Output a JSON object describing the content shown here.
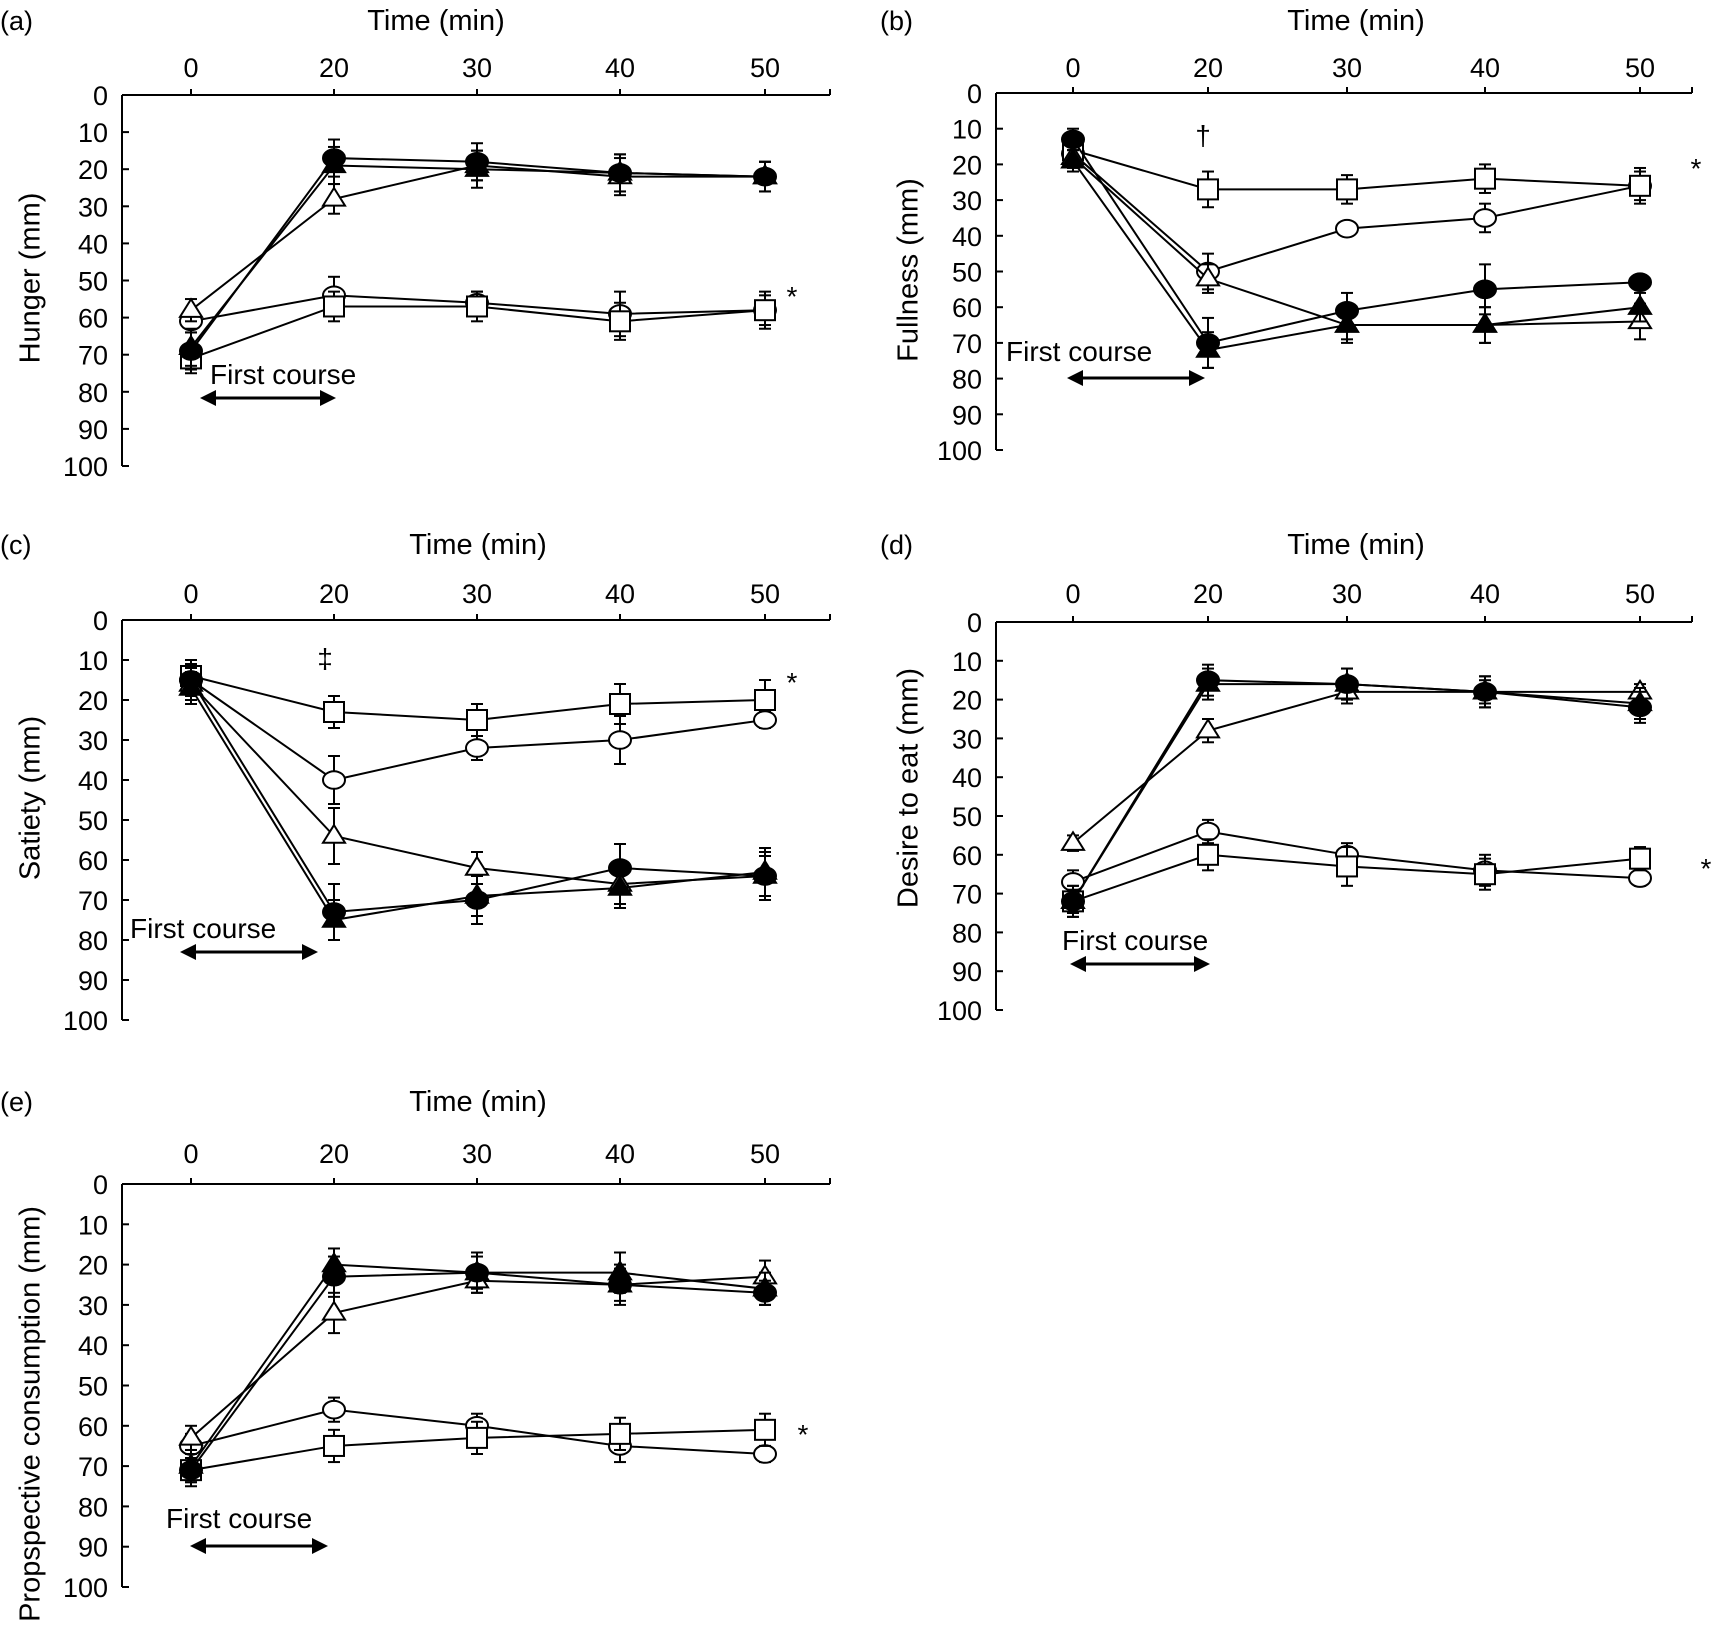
{
  "chart_data": [
    {
      "panel": "(a)",
      "type": "line",
      "xlabel": "Time (min)",
      "ylabel": "Hunger (mm)",
      "x": [
        0,
        20,
        30,
        40,
        50
      ],
      "ylim": [
        0,
        100
      ],
      "yticks": [
        "0",
        "10",
        "20",
        "30",
        "40",
        "50",
        "60",
        "70",
        "80",
        "90",
        "100"
      ],
      "y_reversed": true,
      "annotation": "First course",
      "significance": "*",
      "series": [
        {
          "marker": "open-circle",
          "values": [
            61,
            54,
            56,
            59,
            58
          ],
          "err": [
            3,
            5,
            3,
            6,
            4
          ]
        },
        {
          "marker": "open-square",
          "values": [
            71,
            57,
            57,
            61,
            58
          ],
          "err": [
            4,
            4,
            4,
            5,
            5
          ]
        },
        {
          "marker": "open-triangle",
          "values": [
            58,
            28,
            19,
            22,
            22
          ],
          "err": [
            3,
            4,
            4,
            5,
            4
          ]
        },
        {
          "marker": "filled-circle",
          "values": [
            69,
            17,
            18,
            21,
            22
          ],
          "err": [
            5,
            5,
            5,
            5,
            4
          ]
        },
        {
          "marker": "filled-triangle",
          "values": [
            68,
            19,
            20,
            21,
            22
          ],
          "err": [
            5,
            5,
            5,
            5,
            4
          ]
        }
      ]
    },
    {
      "panel": "(b)",
      "type": "line",
      "xlabel": "Time (min)",
      "ylabel": "Fullness (mm)",
      "x": [
        0,
        20,
        30,
        40,
        50
      ],
      "ylim": [
        0,
        100
      ],
      "yticks": [
        "0",
        "10",
        "20",
        "30",
        "40",
        "50",
        "60",
        "70",
        "80",
        "90",
        "100"
      ],
      "y_reversed": true,
      "annotation": "First course",
      "markers_text": [
        "†"
      ],
      "significance": "*",
      "series": [
        {
          "marker": "open-circle",
          "values": [
            17,
            50,
            38,
            35,
            26
          ],
          "err": [
            3,
            5,
            2,
            4,
            4
          ]
        },
        {
          "marker": "open-square",
          "values": [
            16,
            27,
            27,
            24,
            26
          ],
          "err": [
            3,
            5,
            4,
            4,
            5
          ]
        },
        {
          "marker": "open-triangle",
          "values": [
            18,
            52,
            65,
            65,
            64
          ],
          "err": [
            3,
            4,
            4,
            5,
            5
          ]
        },
        {
          "marker": "filled-circle",
          "values": [
            13,
            70,
            61,
            55,
            53
          ],
          "err": [
            3,
            7,
            5,
            7,
            2
          ]
        },
        {
          "marker": "filled-triangle",
          "values": [
            19,
            72,
            65,
            65,
            60
          ],
          "err": [
            3,
            5,
            5,
            5,
            4
          ]
        }
      ]
    },
    {
      "panel": "(c)",
      "type": "line",
      "xlabel": "Time (min)",
      "ylabel": "Satiety (mm)",
      "x": [
        0,
        20,
        30,
        40,
        50
      ],
      "ylim": [
        0,
        100
      ],
      "yticks": [
        "0",
        "10",
        "20",
        "30",
        "40",
        "50",
        "60",
        "70",
        "80",
        "90",
        "100"
      ],
      "y_reversed": true,
      "annotation": "First course",
      "markers_text": [
        "‡"
      ],
      "significance": "*",
      "series": [
        {
          "marker": "open-square",
          "values": [
            14,
            23,
            25,
            21,
            20
          ],
          "err": [
            4,
            4,
            4,
            5,
            5
          ]
        },
        {
          "marker": "open-circle",
          "values": [
            15,
            40,
            32,
            30,
            25
          ],
          "err": [
            4,
            6,
            3,
            6,
            2
          ]
        },
        {
          "marker": "open-triangle",
          "values": [
            16,
            54,
            62,
            66,
            64
          ],
          "err": [
            4,
            7,
            4,
            5,
            5
          ]
        },
        {
          "marker": "filled-circle",
          "values": [
            15,
            73,
            70,
            62,
            64
          ],
          "err": [
            4,
            7,
            6,
            6,
            6
          ]
        },
        {
          "marker": "filled-triangle",
          "values": [
            17,
            75,
            69,
            67,
            63
          ],
          "err": [
            4,
            5,
            5,
            5,
            6
          ]
        }
      ]
    },
    {
      "panel": "(d)",
      "type": "line",
      "xlabel": "Time (min)",
      "ylabel": "Desire to eat (mm)",
      "x": [
        0,
        20,
        30,
        40,
        50
      ],
      "ylim": [
        0,
        100
      ],
      "yticks": [
        "0",
        "10",
        "20",
        "30",
        "40",
        "50",
        "60",
        "70",
        "80",
        "90",
        "100"
      ],
      "y_reversed": true,
      "annotation": "First course",
      "significance": "*",
      "series": [
        {
          "marker": "open-circle",
          "values": [
            67,
            54,
            60,
            64,
            66
          ],
          "err": [
            3,
            3,
            3,
            4,
            2
          ]
        },
        {
          "marker": "open-square",
          "values": [
            72,
            60,
            63,
            65,
            61
          ],
          "err": [
            3,
            4,
            5,
            4,
            3
          ]
        },
        {
          "marker": "open-triangle",
          "values": [
            57,
            28,
            18,
            18,
            18
          ],
          "err": [
            2,
            3,
            3,
            3,
            2
          ]
        },
        {
          "marker": "filled-circle",
          "values": [
            72,
            15,
            16,
            18,
            22
          ],
          "err": [
            4,
            4,
            4,
            4,
            4
          ]
        },
        {
          "marker": "filled-triangle",
          "values": [
            72,
            16,
            16,
            18,
            21
          ],
          "err": [
            4,
            4,
            4,
            4,
            4
          ]
        }
      ]
    },
    {
      "panel": "(e)",
      "type": "line",
      "xlabel": "Time (min)",
      "ylabel": "Propspective consumption (mm)",
      "x": [
        0,
        20,
        30,
        40,
        50
      ],
      "ylim": [
        0,
        100
      ],
      "yticks": [
        "0",
        "10",
        "20",
        "30",
        "40",
        "50",
        "60",
        "70",
        "80",
        "90",
        "100"
      ],
      "y_reversed": true,
      "annotation": "First course",
      "significance": "*",
      "series": [
        {
          "marker": "open-circle",
          "values": [
            65,
            56,
            60,
            65,
            67
          ],
          "err": [
            3,
            3,
            3,
            4,
            2
          ]
        },
        {
          "marker": "open-square",
          "values": [
            71,
            65,
            63,
            62,
            61
          ],
          "err": [
            3,
            4,
            4,
            4,
            4
          ]
        },
        {
          "marker": "open-triangle",
          "values": [
            63,
            32,
            24,
            25,
            23
          ],
          "err": [
            3,
            5,
            3,
            4,
            4
          ]
        },
        {
          "marker": "filled-circle",
          "values": [
            71,
            23,
            22,
            25,
            27
          ],
          "err": [
            4,
            5,
            5,
            5,
            3
          ]
        },
        {
          "marker": "filled-triangle",
          "values": [
            70,
            20,
            22,
            22,
            26
          ],
          "err": [
            4,
            4,
            4,
            5,
            4
          ]
        }
      ]
    }
  ]
}
